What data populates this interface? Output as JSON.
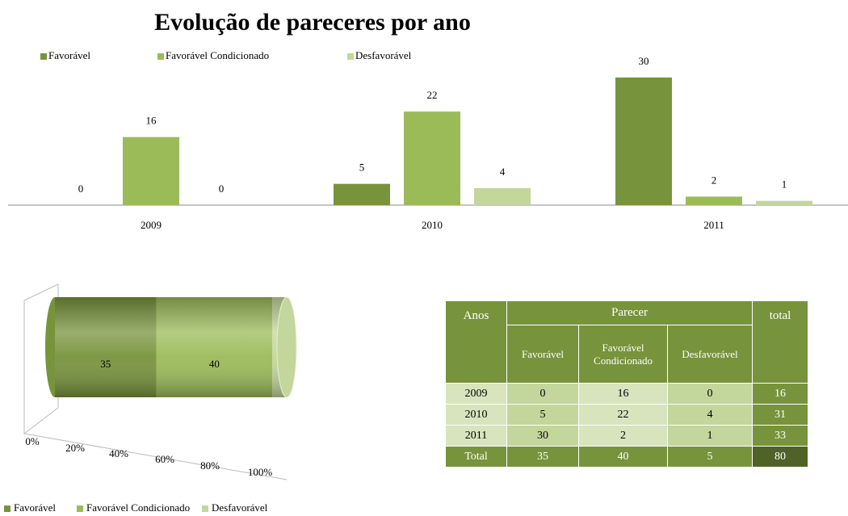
{
  "chart_data": [
    {
      "type": "bar",
      "title": "Evolução de pareceres por ano",
      "categories": [
        "2009",
        "2010",
        "2011"
      ],
      "series": [
        {
          "name": "Favorável",
          "color": "#77933c",
          "values": [
            0,
            5,
            30
          ]
        },
        {
          "name": "Favorável Condicionado",
          "color": "#9bbb59",
          "values": [
            16,
            22,
            2
          ]
        },
        {
          "name": "Desfavorável",
          "color": "#c3d69b",
          "values": [
            0,
            4,
            1
          ]
        }
      ],
      "legend": "top"
    },
    {
      "type": "cylinder",
      "stacking": "percent",
      "series": [
        {
          "name": "Favorável",
          "color": "#77933c",
          "values": [
            35
          ]
        },
        {
          "name": "Favorável Condicionado",
          "color": "#9bbb59",
          "values": [
            40
          ]
        },
        {
          "name": "Desfavorável",
          "color": "#c3d69b",
          "values": [
            5
          ]
        }
      ],
      "xlim": [
        0,
        100
      ],
      "xticks": [
        {
          "value": 0,
          "label": "0%"
        },
        {
          "value": 20,
          "label": "20%"
        },
        {
          "value": 40,
          "label": "40%"
        },
        {
          "value": 60,
          "label": "60%"
        },
        {
          "value": 80,
          "label": "80%"
        },
        {
          "value": 100,
          "label": "100%"
        }
      ],
      "legend": "bottom"
    }
  ],
  "table": {
    "group_header": "Parecer",
    "columns": [
      "Anos",
      "Favorável",
      "Favorável Condicionado",
      "Desfavorável",
      "total"
    ],
    "rows": [
      [
        "2009",
        0,
        16,
        0,
        16
      ],
      [
        "2010",
        5,
        22,
        4,
        31
      ],
      [
        "2011",
        30,
        2,
        1,
        33
      ],
      [
        "Total",
        35,
        40,
        5,
        80
      ]
    ]
  }
}
